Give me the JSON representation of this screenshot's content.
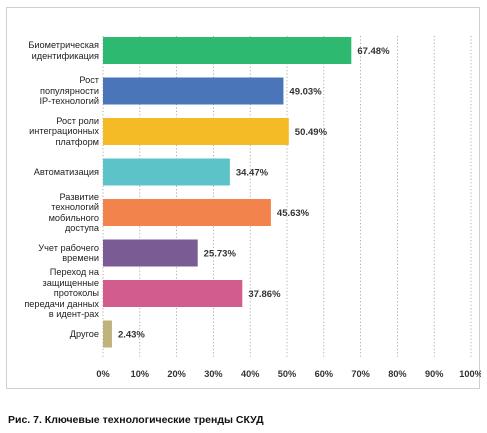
{
  "chart_data": {
    "type": "bar",
    "orientation": "horizontal",
    "categories": [
      "Биометрическая\nидентификация",
      "Рост\nпопулярности\nIP-технологий",
      "Рост роли\nинтеграционных\nплатформ",
      "Автоматизация",
      "Развитие\nтехнологий\nмобильного\nдоступа",
      "Учет рабочего\nвремени",
      "Переход на\nзащищенные\nпротоколы\nпередачи данных\nв идент-рах",
      "Другое"
    ],
    "values": [
      67.48,
      49.03,
      50.49,
      34.47,
      45.63,
      25.73,
      37.86,
      2.43
    ],
    "value_labels": [
      "67.48%",
      "49.03%",
      "50.49%",
      "34.47%",
      "45.63%",
      "25.73%",
      "37.86%",
      "2.43%"
    ],
    "colors": [
      "#2db96f",
      "#4a75b8",
      "#f5bb26",
      "#5cc3c8",
      "#f3834d",
      "#7a5b94",
      "#d25d8c",
      "#bfb27a"
    ],
    "xlim": [
      0,
      100
    ],
    "x_ticks": [
      0,
      10,
      20,
      30,
      40,
      50,
      60,
      70,
      80,
      90,
      100
    ],
    "x_tick_labels": [
      "0%",
      "10%",
      "20%",
      "30%",
      "40%",
      "50%",
      "60%",
      "70%",
      "80%",
      "90%",
      "100%"
    ],
    "grid": "vertical-dotted",
    "legend": "none",
    "title": "",
    "xlabel": "",
    "ylabel": ""
  },
  "caption": "Рис. 7. Ключевые технологические тренды СКУД"
}
